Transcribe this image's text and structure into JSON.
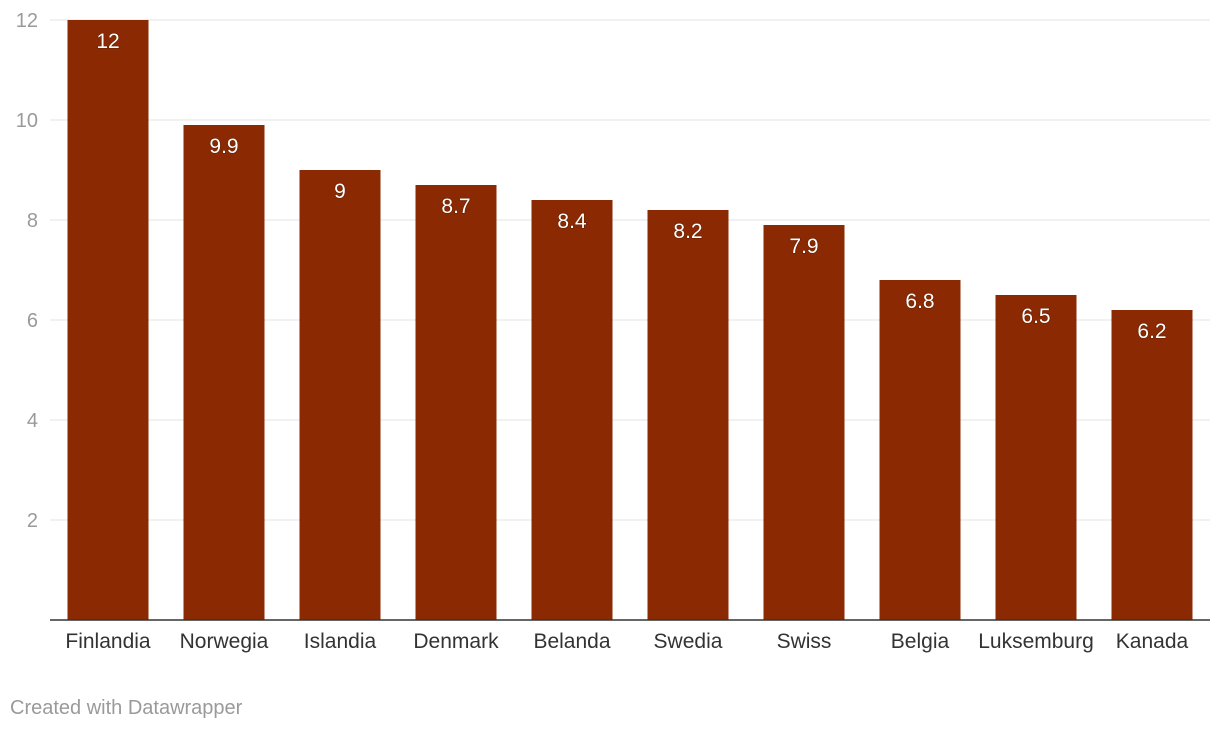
{
  "chart_data": {
    "type": "bar",
    "categories": [
      "Finlandia",
      "Norwegia",
      "Islandia",
      "Denmark",
      "Belanda",
      "Swedia",
      "Swiss",
      "Belgia",
      "Luksemburg",
      "Kanada"
    ],
    "values": [
      12,
      9.9,
      9,
      8.7,
      8.4,
      8.2,
      7.9,
      6.8,
      6.5,
      6.2
    ],
    "value_labels": [
      "12",
      "9.9",
      "9",
      "8.7",
      "8.4",
      "8.2",
      "7.9",
      "6.8",
      "6.5",
      "6.2"
    ],
    "y_ticks": [
      2,
      4,
      6,
      8,
      10,
      12
    ],
    "ylim": [
      0,
      12
    ],
    "grid": true,
    "bar_color": "#8b2a02"
  },
  "footer": {
    "credit": "Created with Datawrapper"
  }
}
